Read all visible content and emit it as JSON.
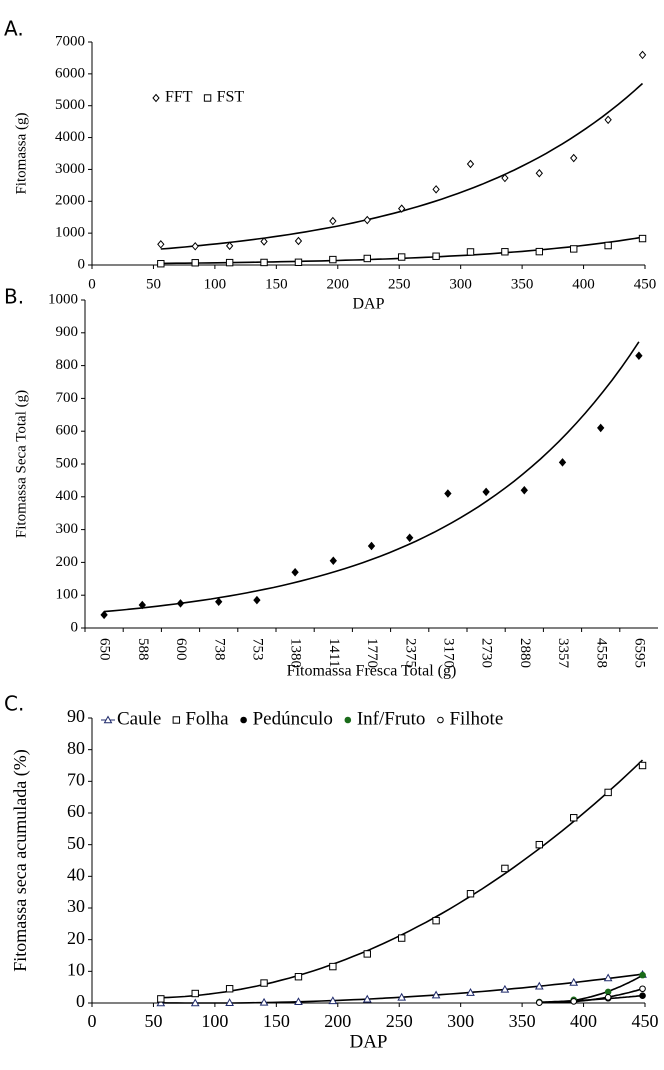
{
  "chart_data": [
    {
      "type": "scatter",
      "label": "A.",
      "x": [
        56,
        84,
        112,
        140,
        168,
        196,
        224,
        252,
        280,
        308,
        336,
        364,
        392,
        420,
        448
      ],
      "series": [
        {
          "name": "FFT",
          "color": "#000000",
          "marker": "diamond",
          "filled": false,
          "values": [
            650,
            588,
            600,
            738,
            753,
            1380,
            1411,
            1770,
            2375,
            3170,
            2730,
            2880,
            3357,
            4558,
            6595
          ]
        },
        {
          "name": "FST",
          "color": "#000000",
          "marker": "square",
          "filled": false,
          "values": [
            40,
            70,
            75,
            80,
            85,
            170,
            205,
            250,
            275,
            410,
            415,
            420,
            505,
            610,
            830
          ]
        }
      ],
      "xlim": [
        0,
        450
      ],
      "xticks": [
        0,
        50,
        100,
        150,
        200,
        250,
        300,
        350,
        400,
        450
      ],
      "ylim": [
        0,
        7000
      ],
      "yticks": [
        0,
        1000,
        2000,
        3000,
        4000,
        5000,
        6000,
        7000
      ],
      "xlabel": "DAP",
      "ylabel": "Fitomassa (g)",
      "trendline": "exponential",
      "legend": "upper left"
    },
    {
      "type": "scatter",
      "label": "B.",
      "categories": [
        "650",
        "588",
        "600",
        "738",
        "753",
        "1380",
        "1411",
        "1770",
        "2375",
        "3170",
        "2730",
        "2880",
        "3357",
        "4558",
        "6595"
      ],
      "series": [
        {
          "color": "#000000",
          "marker": "diamond",
          "filled": true,
          "values": [
            40,
            70,
            75,
            80,
            85,
            170,
            205,
            250,
            275,
            410,
            415,
            420,
            505,
            610,
            830
          ]
        }
      ],
      "ylim": [
        0,
        1000
      ],
      "yticks": [
        0,
        100,
        200,
        300,
        400,
        500,
        600,
        700,
        800,
        900,
        1000
      ],
      "xlabel": "Fitomassa Fresca Total (g)",
      "ylabel": "Fitomassa Seca Total (g)",
      "trendline": "exponential"
    },
    {
      "type": "scatter",
      "label": "C.",
      "x": [
        56,
        84,
        112,
        140,
        168,
        196,
        224,
        252,
        280,
        308,
        336,
        364,
        392,
        420,
        448
      ],
      "series": [
        {
          "name": "Caule",
          "color": "#1f2a6b",
          "marker": "triangle",
          "filled": false,
          "values": [
            0,
            0,
            0.1,
            0.2,
            0.4,
            0.7,
            1.2,
            1.8,
            2.5,
            3.3,
            4.3,
            5.3,
            6.5,
            7.9,
            9.0
          ]
        },
        {
          "name": "Folha",
          "color": "#000000",
          "marker": "square",
          "filled": false,
          "values": [
            1.3,
            3,
            4.5,
            6.3,
            8.3,
            11.5,
            15.5,
            20.5,
            26,
            34.5,
            42.5,
            50,
            58.5,
            66.5,
            75
          ]
        },
        {
          "name": "Pedúnculo",
          "color": "#000000",
          "marker": "circle",
          "filled": true,
          "values": [
            null,
            null,
            null,
            null,
            null,
            null,
            null,
            null,
            null,
            null,
            null,
            0.3,
            0.6,
            1.5,
            2.3
          ]
        },
        {
          "name": "Inf/Fruto",
          "color": "#1a6b1a",
          "marker": "circle",
          "filled": true,
          "values": [
            null,
            null,
            null,
            null,
            null,
            null,
            null,
            null,
            null,
            null,
            null,
            0.2,
            1.0,
            3.5,
            8.8
          ]
        },
        {
          "name": "Filhote",
          "color": "#000000",
          "marker": "circle",
          "filled": false,
          "values": [
            null,
            null,
            null,
            null,
            null,
            null,
            null,
            null,
            null,
            null,
            null,
            0.1,
            0.5,
            1.8,
            4.5
          ]
        }
      ],
      "xlim": [
        0,
        450
      ],
      "xticks": [
        0,
        50,
        100,
        150,
        200,
        250,
        300,
        350,
        400,
        450
      ],
      "ylim": [
        0,
        90
      ],
      "yticks": [
        0,
        10,
        20,
        30,
        40,
        50,
        60,
        70,
        80,
        90
      ],
      "xlabel": "DAP",
      "ylabel": "Fitomassa seca acumulada (%)",
      "trendline": "polynomial",
      "legend": "top"
    }
  ]
}
